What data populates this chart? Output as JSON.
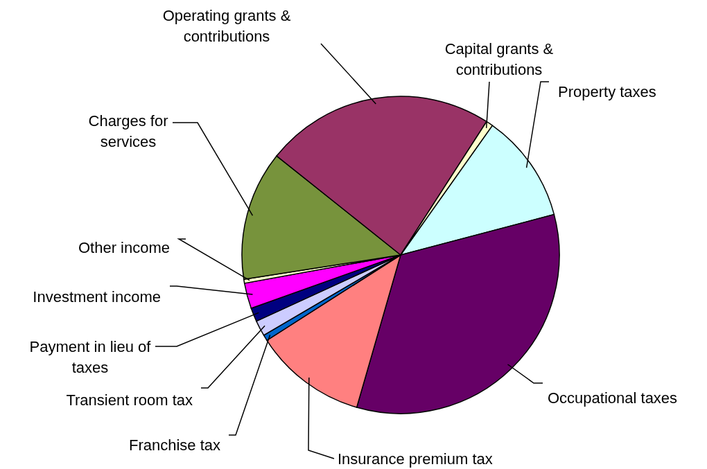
{
  "chart_data": {
    "type": "pie",
    "categories": [
      "Property taxes",
      "Occupational taxes",
      "Insurance premium tax",
      "Franchise tax",
      "Transient room tax",
      "Payment in lieu of taxes",
      "Investment income",
      "Other income",
      "Charges for services",
      "Operating grants & contributions",
      "Capital grants & contributions"
    ],
    "values": [
      11.1,
      33.6,
      11.5,
      0.6,
      1.6,
      1.4,
      2.6,
      0.4,
      13.2,
      23.4,
      0.7
    ],
    "colors": [
      "#ccffff",
      "#660066",
      "#ff8080",
      "#0066cc",
      "#ccccff",
      "#000080",
      "#ff00ff",
      "#ffffcc",
      "#77933c",
      "#993366",
      "#ffffcc"
    ]
  }
}
